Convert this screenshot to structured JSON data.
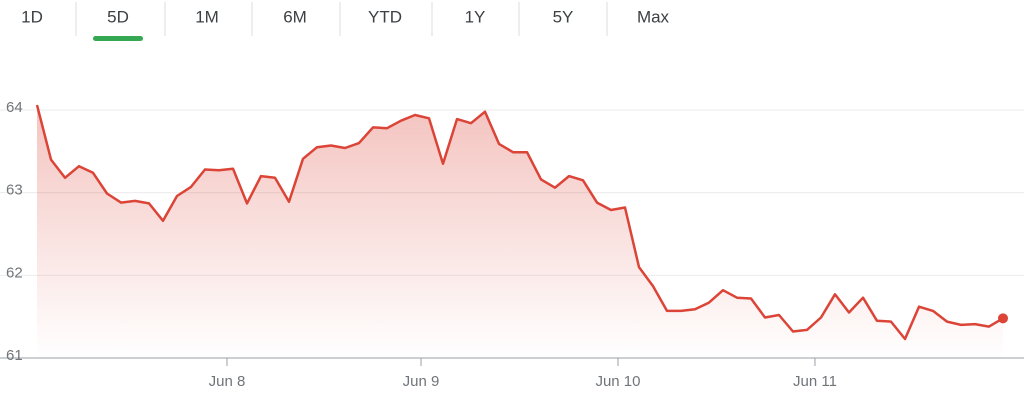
{
  "tabs": [
    "1D",
    "5D",
    "1M",
    "6M",
    "YTD",
    "1Y",
    "5Y",
    "Max"
  ],
  "active_tab": 1,
  "chart_data": {
    "type": "line",
    "color": "#db4437",
    "fill": true,
    "grid": true,
    "x": [
      0,
      1,
      2,
      3,
      4,
      5,
      6,
      7,
      8,
      9,
      10,
      11,
      12,
      13,
      14,
      15,
      16,
      17,
      18,
      19,
      20,
      21,
      22,
      23,
      24,
      25,
      26,
      27,
      28,
      29,
      30,
      31,
      32,
      33,
      34,
      35,
      36,
      37,
      38,
      39,
      40,
      41,
      42,
      43,
      44,
      45,
      46,
      47,
      48,
      49,
      50,
      51,
      52,
      53,
      54,
      55,
      56,
      57,
      58,
      59,
      60,
      61,
      62,
      63,
      64,
      65,
      66,
      67,
      68,
      69
    ],
    "values": [
      64.06,
      63.4,
      63.18,
      63.32,
      63.24,
      62.99,
      62.88,
      62.9,
      62.87,
      62.66,
      62.96,
      63.07,
      63.28,
      63.27,
      63.29,
      62.87,
      63.2,
      63.18,
      62.89,
      63.41,
      63.55,
      63.57,
      63.54,
      63.6,
      63.79,
      63.78,
      63.87,
      63.94,
      63.9,
      63.35,
      63.89,
      63.84,
      63.98,
      63.59,
      63.49,
      63.49,
      63.16,
      63.06,
      63.2,
      63.15,
      62.88,
      62.79,
      62.82,
      62.1,
      61.87,
      61.57,
      61.57,
      61.59,
      61.67,
      61.82,
      61.73,
      61.72,
      61.49,
      61.52,
      61.32,
      61.34,
      61.49,
      61.77,
      61.55,
      61.73,
      61.45,
      61.44,
      61.23,
      61.62,
      61.57,
      61.44,
      61.4,
      61.41,
      61.38,
      61.48
    ],
    "xlim": [
      0,
      69.43
    ],
    "xticks": [
      {
        "value": 13.57,
        "label": "Jun 8"
      },
      {
        "value": 27.43,
        "label": "Jun 9"
      },
      {
        "value": 41.5,
        "label": "Jun 10"
      },
      {
        "value": 55.57,
        "label": "Jun 11"
      }
    ],
    "ylim": [
      61,
      64.15
    ],
    "yticks": [
      61,
      62,
      63,
      64
    ]
  }
}
